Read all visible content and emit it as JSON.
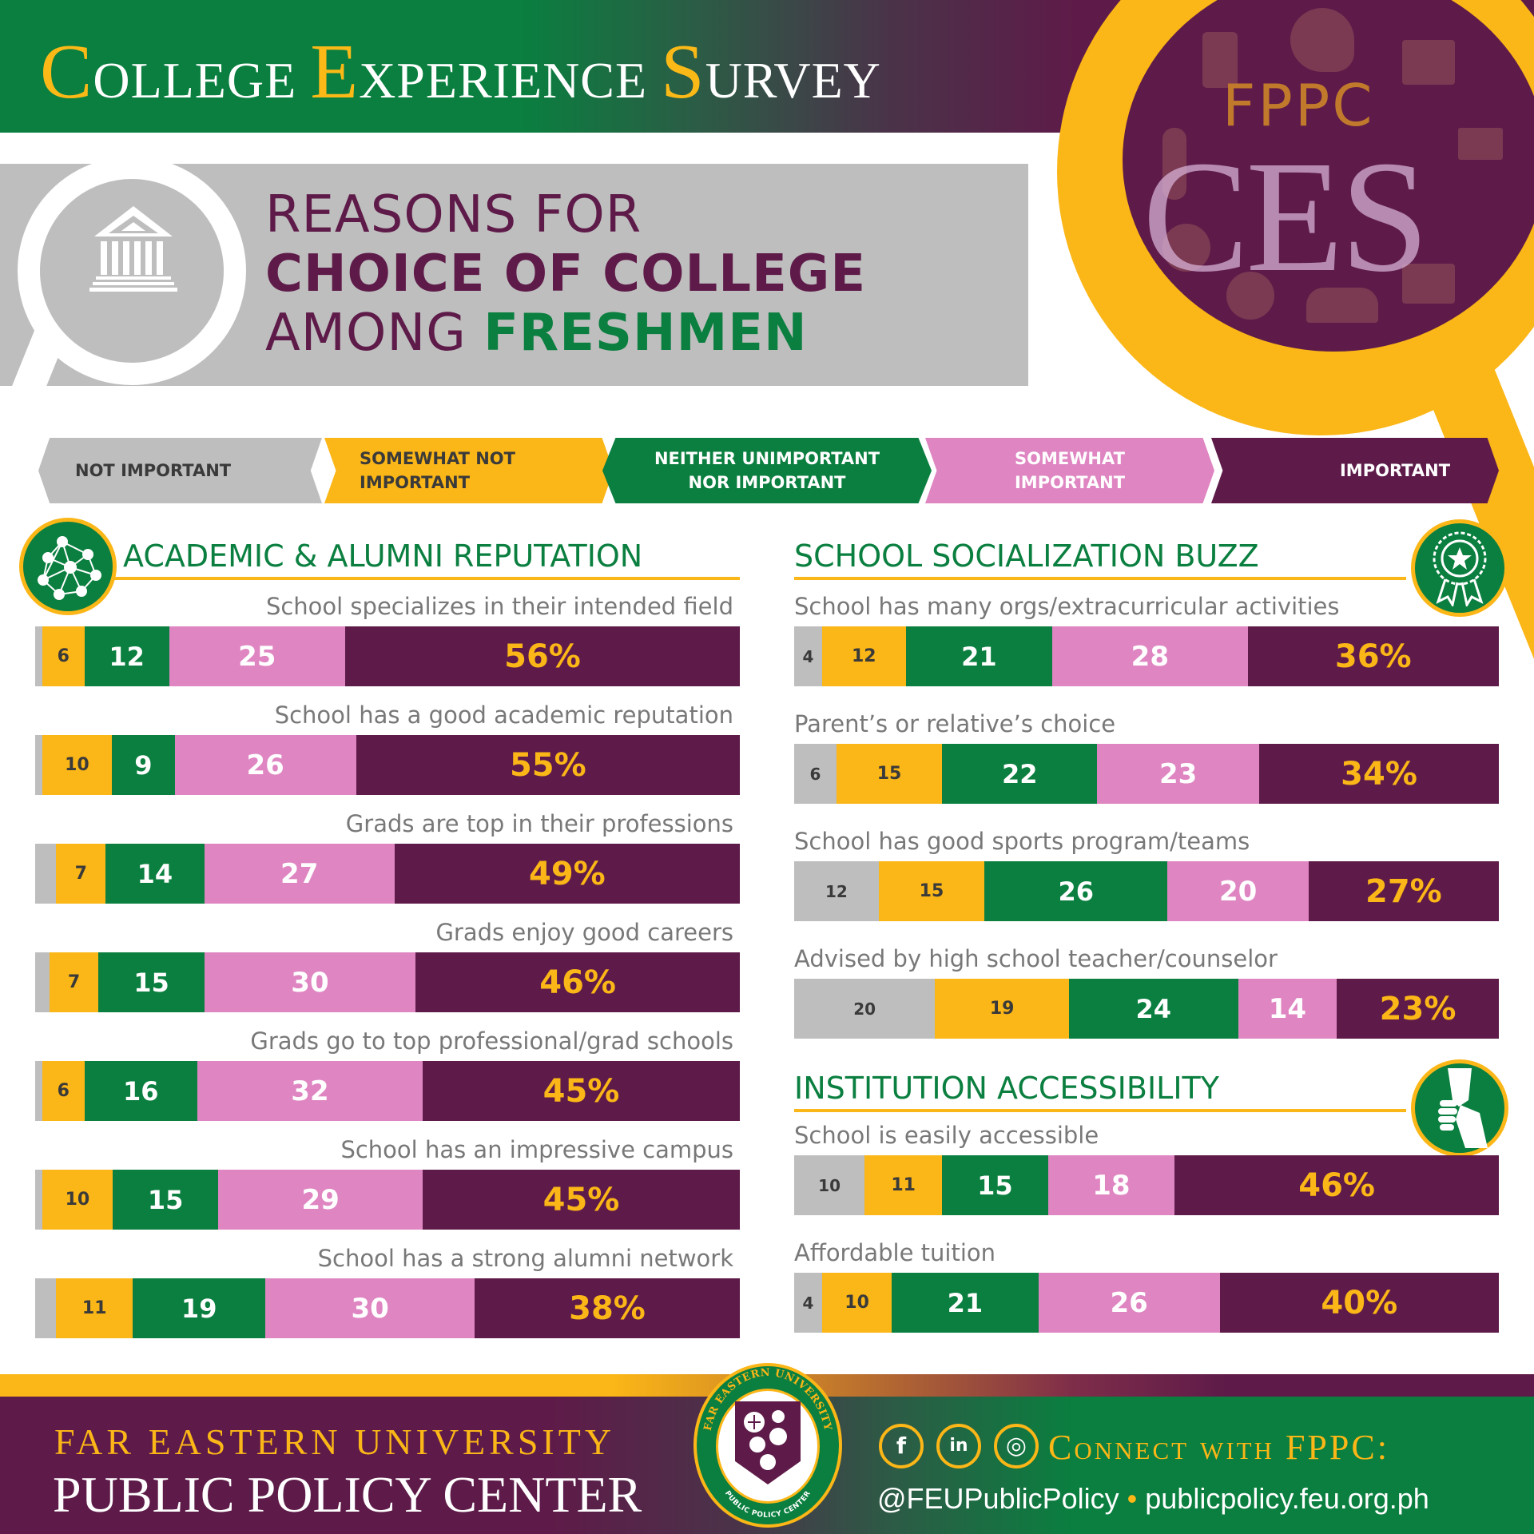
{
  "header": {
    "title_parts": [
      {
        "initial": "C",
        "rest": "OLLEGE"
      },
      {
        "initial": "E",
        "rest": "XPERIENCE"
      },
      {
        "initial": "S",
        "rest": "URVEY"
      }
    ],
    "logo_small": "FPPC",
    "logo_big": "CES"
  },
  "subtitle": {
    "line1": "REASONS FOR",
    "line2": "CHOICE OF COLLEGE",
    "line3_a": "AMONG",
    "line3_b": "FRESHMEN"
  },
  "colors": {
    "not_important": "#bebebe",
    "somewhat_not_important": "#fbb617",
    "neither": "#0a7f3f",
    "somewhat_important": "#df86c2",
    "important": "#5e1b49",
    "accent_gold": "#fbb617",
    "brand_green": "#0a7f3f",
    "brand_maroon": "#5e1b49"
  },
  "legend": [
    {
      "line1": "NOT IMPORTANT",
      "line2": ""
    },
    {
      "line1": "SOMEWHAT NOT",
      "line2": "IMPORTANT"
    },
    {
      "line1": "NEITHER UNIMPORTANT",
      "line2": "NOR IMPORTANT"
    },
    {
      "line1": "SOMEWHAT",
      "line2": "IMPORTANT"
    },
    {
      "line1": "IMPORTANT",
      "line2": ""
    }
  ],
  "chart_data": {
    "type": "bar",
    "orientation": "horizontal-stacked-100",
    "title": "Reasons for Choice of College Among Freshmen",
    "unit": "%",
    "series_names": [
      "Not important",
      "Somewhat not important",
      "Neither unimportant nor important",
      "Somewhat important",
      "Important"
    ],
    "groups": [
      {
        "title": "ACADEMIC & ALUMNI REPUTATION",
        "icon": "network-people-icon",
        "items": [
          {
            "label": "School specializes in their intended field",
            "values": [
              1,
              6,
              12,
              25,
              56
            ],
            "shown": [
              "",
              "6",
              "12",
              "25",
              "56%"
            ]
          },
          {
            "label": "School has a good academic reputation",
            "values": [
              1,
              10,
              9,
              26,
              55
            ],
            "shown": [
              "",
              "10",
              "9",
              "26",
              "55%"
            ]
          },
          {
            "label": "Grads are top in their professions",
            "values": [
              3,
              7,
              14,
              27,
              49
            ],
            "shown": [
              "",
              "7",
              "14",
              "27",
              "49%"
            ]
          },
          {
            "label": "Grads enjoy good careers",
            "values": [
              2,
              7,
              15,
              30,
              46
            ],
            "shown": [
              "",
              "7",
              "15",
              "30",
              "46%"
            ]
          },
          {
            "label": "Grads go to top professional/grad schools",
            "values": [
              1,
              6,
              16,
              32,
              45
            ],
            "shown": [
              "",
              "6",
              "16",
              "32",
              "45%"
            ]
          },
          {
            "label": "School has an impressive campus",
            "values": [
              1,
              10,
              15,
              29,
              45
            ],
            "shown": [
              "",
              "10",
              "15",
              "29",
              "45%"
            ]
          },
          {
            "label": "School has a strong alumni network",
            "values": [
              3,
              11,
              19,
              30,
              38
            ],
            "shown": [
              "",
              "11",
              "19",
              "30",
              "38%"
            ]
          }
        ]
      },
      {
        "title": "SCHOOL SOCIALIZATION BUZZ",
        "icon": "award-ribbon-icon",
        "items": [
          {
            "label": "School has many orgs/extracurricular activities",
            "values": [
              4,
              12,
              21,
              28,
              36
            ],
            "shown": [
              "4",
              "12",
              "21",
              "28",
              "36%"
            ]
          },
          {
            "label": "Parent’s or relative’s choice",
            "values": [
              6,
              15,
              22,
              23,
              34
            ],
            "shown": [
              "6",
              "15",
              "22",
              "23",
              "34%"
            ]
          },
          {
            "label": "School has good sports program/teams",
            "values": [
              12,
              15,
              26,
              20,
              27
            ],
            "shown": [
              "12",
              "15",
              "26",
              "20",
              "27%"
            ]
          },
          {
            "label": "Advised by high school teacher/counselor",
            "values": [
              20,
              19,
              24,
              14,
              23
            ],
            "shown": [
              "20",
              "19",
              "24",
              "14",
              "23%"
            ]
          }
        ]
      },
      {
        "title": "INSTITUTION ACCESSIBILITY",
        "icon": "handshake-icon",
        "items": [
          {
            "label": "School is easily accessible",
            "values": [
              10,
              11,
              15,
              18,
              46
            ],
            "shown": [
              "10",
              "11",
              "15",
              "18",
              "46%"
            ]
          },
          {
            "label": "Affordable tuition",
            "values": [
              4,
              10,
              21,
              26,
              40
            ],
            "shown": [
              "4",
              "10",
              "21",
              "26",
              "40%"
            ]
          }
        ]
      }
    ]
  },
  "footer": {
    "org_line1": "FAR EASTERN UNIVERSITY",
    "org_line2": "PUBLIC POLICY CENTER",
    "seal_top": "FAR EASTERN UNIVERSITY",
    "seal_bottom": "PUBLIC POLICY CENTER",
    "connect_label": "Connect with FPPC:",
    "social_icons": [
      "facebook-icon",
      "linkedin-icon",
      "globe-icon"
    ],
    "social_glyphs": [
      "f",
      "in",
      "◎"
    ],
    "handle": "@FEUPublicPolicy",
    "separator": "•",
    "website": "publicpolicy.feu.org.ph"
  }
}
